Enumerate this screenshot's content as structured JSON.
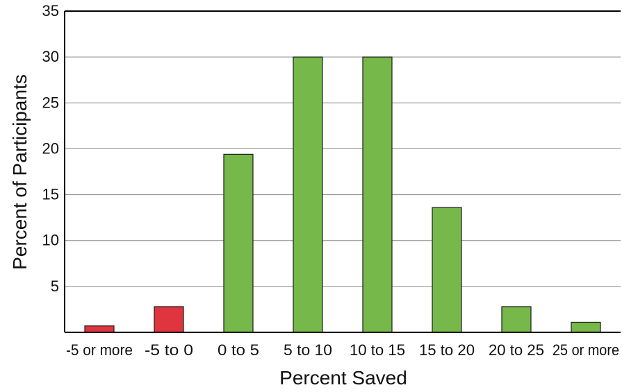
{
  "chart_data": {
    "type": "bar",
    "title": "",
    "xlabel": "Percent Saved",
    "ylabel": "Percent of Participants",
    "categories": [
      "-5 or more",
      "-5 to 0",
      "0 to 5",
      "5 to 10",
      "10 to 15",
      "15 to 20",
      "20 to 25",
      "25 or more"
    ],
    "values": [
      0.7,
      2.8,
      19.4,
      30.0,
      30.0,
      13.6,
      2.8,
      1.1
    ],
    "bar_colors": [
      "#e0353f",
      "#e0353f",
      "#76b84a",
      "#76b84a",
      "#76b84a",
      "#76b84a",
      "#76b84a",
      "#76b84a"
    ],
    "ylim": [
      0,
      35
    ],
    "yticks": [
      5,
      10,
      15,
      20,
      25,
      30,
      35
    ],
    "grid": true,
    "legend": "none",
    "colors": {
      "title": "#5fb337",
      "negative": "#e0353f",
      "positive": "#76b84a",
      "bar_outline": "#1a1a1a",
      "grid": "#888888",
      "axis": "#000000"
    }
  }
}
